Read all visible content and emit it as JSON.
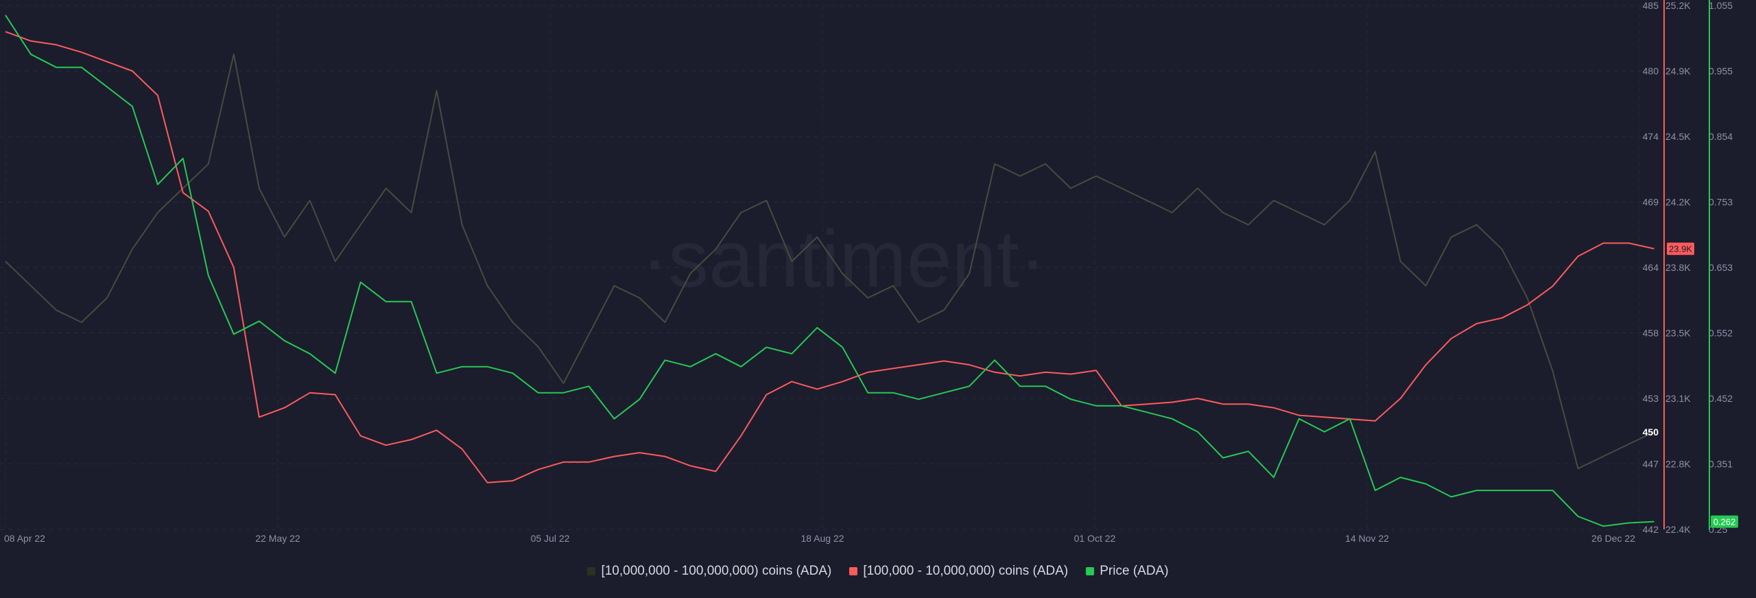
{
  "watermark": "·santiment·",
  "chart_data": {
    "type": "line",
    "x_ticks": [
      "08 Apr 22",
      "22 May 22",
      "05 Jul 22",
      "18 Aug 22",
      "01 Oct 22",
      "14 Nov 22",
      "26 Dec 22"
    ],
    "x_range": [
      "2022-04-08",
      "2022-12-26"
    ],
    "axes": [
      {
        "id": "holders_10m_100m",
        "ticks": [
          "485",
          "480",
          "474",
          "469",
          "464",
          "458",
          "453",
          "447",
          "442"
        ],
        "range": [
          442,
          485
        ],
        "current_label": "450",
        "color": "#4a4a3e"
      },
      {
        "id": "holders_100k_10m",
        "ticks": [
          "25.2K",
          "24.9K",
          "24.5K",
          "24.2K",
          "23.8K",
          "23.5K",
          "23.1K",
          "22.8K",
          "22.4K"
        ],
        "range": [
          22400,
          25200
        ],
        "current_label": "23.9K",
        "color": "#ff5b5b"
      },
      {
        "id": "price",
        "ticks": [
          "1.055",
          "0.955",
          "0.854",
          "0.753",
          "0.653",
          "0.552",
          "0.452",
          "0.351",
          "0.25"
        ],
        "range": [
          0.25,
          1.055
        ],
        "current_label": "0.262",
        "color": "#26c953"
      }
    ],
    "series": [
      {
        "name": "[10,000,000 - 100,000,000) coins (ADA)",
        "axis": "holders_10m_100m",
        "color": "#4a4a3e",
        "legend_swatch": "#2e3020",
        "points": [
          [
            "2022-04-08",
            464.0
          ],
          [
            "2022-04-12",
            462.0
          ],
          [
            "2022-04-16",
            460.0
          ],
          [
            "2022-04-20",
            459.0
          ],
          [
            "2022-04-24",
            461.0
          ],
          [
            "2022-04-28",
            465.0
          ],
          [
            "2022-05-02",
            468.0
          ],
          [
            "2022-05-06",
            470.0
          ],
          [
            "2022-05-10",
            472.0
          ],
          [
            "2022-05-14",
            481.0
          ],
          [
            "2022-05-18",
            470.0
          ],
          [
            "2022-05-22",
            466.0
          ],
          [
            "2022-05-26",
            469.0
          ],
          [
            "2022-05-30",
            464.0
          ],
          [
            "2022-06-03",
            467.0
          ],
          [
            "2022-06-07",
            470.0
          ],
          [
            "2022-06-11",
            468.0
          ],
          [
            "2022-06-15",
            478.0
          ],
          [
            "2022-06-19",
            467.0
          ],
          [
            "2022-06-23",
            462.0
          ],
          [
            "2022-06-27",
            459.0
          ],
          [
            "2022-07-01",
            457.0
          ],
          [
            "2022-07-05",
            454.0
          ],
          [
            "2022-07-09",
            458.0
          ],
          [
            "2022-07-13",
            462.0
          ],
          [
            "2022-07-17",
            461.0
          ],
          [
            "2022-07-21",
            459.0
          ],
          [
            "2022-07-25",
            463.0
          ],
          [
            "2022-07-29",
            465.0
          ],
          [
            "2022-08-02",
            468.0
          ],
          [
            "2022-08-06",
            469.0
          ],
          [
            "2022-08-10",
            464.0
          ],
          [
            "2022-08-14",
            466.0
          ],
          [
            "2022-08-18",
            463.0
          ],
          [
            "2022-08-22",
            461.0
          ],
          [
            "2022-08-26",
            462.0
          ],
          [
            "2022-08-30",
            459.0
          ],
          [
            "2022-09-03",
            460.0
          ],
          [
            "2022-09-07",
            463.0
          ],
          [
            "2022-09-11",
            472.0
          ],
          [
            "2022-09-15",
            471.0
          ],
          [
            "2022-09-19",
            472.0
          ],
          [
            "2022-09-23",
            470.0
          ],
          [
            "2022-09-27",
            471.0
          ],
          [
            "2022-10-01",
            470.0
          ],
          [
            "2022-10-05",
            469.0
          ],
          [
            "2022-10-09",
            468.0
          ],
          [
            "2022-10-13",
            470.0
          ],
          [
            "2022-10-17",
            468.0
          ],
          [
            "2022-10-21",
            467.0
          ],
          [
            "2022-10-25",
            469.0
          ],
          [
            "2022-10-29",
            468.0
          ],
          [
            "2022-11-02",
            467.0
          ],
          [
            "2022-11-06",
            469.0
          ],
          [
            "2022-11-10",
            473.0
          ],
          [
            "2022-11-14",
            464.0
          ],
          [
            "2022-11-18",
            462.0
          ],
          [
            "2022-11-22",
            466.0
          ],
          [
            "2022-11-26",
            467.0
          ],
          [
            "2022-11-30",
            465.0
          ],
          [
            "2022-12-04",
            461.0
          ],
          [
            "2022-12-08",
            455.0
          ],
          [
            "2022-12-12",
            447.0
          ],
          [
            "2022-12-16",
            448.0
          ],
          [
            "2022-12-20",
            449.0
          ],
          [
            "2022-12-24",
            450.0
          ]
        ]
      },
      {
        "name": "[100,000  - 10,000,000) coins (ADA)",
        "axis": "holders_100k_10m",
        "color": "#ff5b5b",
        "legend_swatch": "#ff5b5b",
        "points": [
          [
            "2022-04-08",
            25060
          ],
          [
            "2022-04-12",
            25010
          ],
          [
            "2022-04-16",
            24990
          ],
          [
            "2022-04-20",
            24950
          ],
          [
            "2022-04-24",
            24900
          ],
          [
            "2022-04-28",
            24850
          ],
          [
            "2022-05-02",
            24720
          ],
          [
            "2022-05-06",
            24200
          ],
          [
            "2022-05-10",
            24100
          ],
          [
            "2022-05-14",
            23800
          ],
          [
            "2022-05-18",
            23000
          ],
          [
            "2022-05-22",
            23050
          ],
          [
            "2022-05-26",
            23130
          ],
          [
            "2022-05-30",
            23120
          ],
          [
            "2022-06-03",
            22900
          ],
          [
            "2022-06-07",
            22850
          ],
          [
            "2022-06-11",
            22880
          ],
          [
            "2022-06-15",
            22930
          ],
          [
            "2022-06-19",
            22830
          ],
          [
            "2022-06-23",
            22650
          ],
          [
            "2022-06-27",
            22660
          ],
          [
            "2022-07-01",
            22720
          ],
          [
            "2022-07-05",
            22760
          ],
          [
            "2022-07-09",
            22760
          ],
          [
            "2022-07-13",
            22790
          ],
          [
            "2022-07-17",
            22810
          ],
          [
            "2022-07-21",
            22790
          ],
          [
            "2022-07-25",
            22740
          ],
          [
            "2022-07-29",
            22710
          ],
          [
            "2022-08-02",
            22900
          ],
          [
            "2022-08-06",
            23120
          ],
          [
            "2022-08-10",
            23190
          ],
          [
            "2022-08-14",
            23150
          ],
          [
            "2022-08-18",
            23190
          ],
          [
            "2022-08-22",
            23240
          ],
          [
            "2022-08-26",
            23260
          ],
          [
            "2022-08-30",
            23280
          ],
          [
            "2022-09-03",
            23300
          ],
          [
            "2022-09-07",
            23280
          ],
          [
            "2022-09-11",
            23240
          ],
          [
            "2022-09-15",
            23220
          ],
          [
            "2022-09-19",
            23240
          ],
          [
            "2022-09-23",
            23230
          ],
          [
            "2022-09-27",
            23250
          ],
          [
            "2022-10-01",
            23060
          ],
          [
            "2022-10-05",
            23070
          ],
          [
            "2022-10-09",
            23080
          ],
          [
            "2022-10-13",
            23100
          ],
          [
            "2022-10-17",
            23070
          ],
          [
            "2022-10-21",
            23070
          ],
          [
            "2022-10-25",
            23050
          ],
          [
            "2022-10-29",
            23010
          ],
          [
            "2022-11-02",
            23000
          ],
          [
            "2022-11-06",
            22990
          ],
          [
            "2022-11-10",
            22980
          ],
          [
            "2022-11-14",
            23100
          ],
          [
            "2022-11-18",
            23280
          ],
          [
            "2022-11-22",
            23420
          ],
          [
            "2022-11-26",
            23500
          ],
          [
            "2022-11-30",
            23530
          ],
          [
            "2022-12-04",
            23600
          ],
          [
            "2022-12-08",
            23700
          ],
          [
            "2022-12-12",
            23860
          ],
          [
            "2022-12-16",
            23930
          ],
          [
            "2022-12-20",
            23930
          ],
          [
            "2022-12-24",
            23900
          ]
        ]
      },
      {
        "name": "Price (ADA)",
        "axis": "price",
        "color": "#26c953",
        "legend_swatch": "#26c953",
        "points": [
          [
            "2022-04-08",
            1.04
          ],
          [
            "2022-04-12",
            0.98
          ],
          [
            "2022-04-16",
            0.96
          ],
          [
            "2022-04-20",
            0.96
          ],
          [
            "2022-04-24",
            0.93
          ],
          [
            "2022-04-28",
            0.9
          ],
          [
            "2022-05-02",
            0.78
          ],
          [
            "2022-05-06",
            0.82
          ],
          [
            "2022-05-10",
            0.64
          ],
          [
            "2022-05-14",
            0.55
          ],
          [
            "2022-05-18",
            0.57
          ],
          [
            "2022-05-22",
            0.54
          ],
          [
            "2022-05-26",
            0.52
          ],
          [
            "2022-05-30",
            0.49
          ],
          [
            "2022-06-03",
            0.63
          ],
          [
            "2022-06-07",
            0.6
          ],
          [
            "2022-06-11",
            0.6
          ],
          [
            "2022-06-15",
            0.49
          ],
          [
            "2022-06-19",
            0.5
          ],
          [
            "2022-06-23",
            0.5
          ],
          [
            "2022-06-27",
            0.49
          ],
          [
            "2022-07-01",
            0.46
          ],
          [
            "2022-07-05",
            0.46
          ],
          [
            "2022-07-09",
            0.47
          ],
          [
            "2022-07-13",
            0.42
          ],
          [
            "2022-07-17",
            0.45
          ],
          [
            "2022-07-21",
            0.51
          ],
          [
            "2022-07-25",
            0.5
          ],
          [
            "2022-07-29",
            0.52
          ],
          [
            "2022-08-02",
            0.5
          ],
          [
            "2022-08-06",
            0.53
          ],
          [
            "2022-08-10",
            0.52
          ],
          [
            "2022-08-14",
            0.56
          ],
          [
            "2022-08-18",
            0.53
          ],
          [
            "2022-08-22",
            0.46
          ],
          [
            "2022-08-26",
            0.46
          ],
          [
            "2022-08-30",
            0.45
          ],
          [
            "2022-09-03",
            0.46
          ],
          [
            "2022-09-07",
            0.47
          ],
          [
            "2022-09-11",
            0.51
          ],
          [
            "2022-09-15",
            0.47
          ],
          [
            "2022-09-19",
            0.47
          ],
          [
            "2022-09-23",
            0.45
          ],
          [
            "2022-09-27",
            0.44
          ],
          [
            "2022-10-01",
            0.44
          ],
          [
            "2022-10-05",
            0.43
          ],
          [
            "2022-10-09",
            0.42
          ],
          [
            "2022-10-13",
            0.4
          ],
          [
            "2022-10-17",
            0.36
          ],
          [
            "2022-10-21",
            0.37
          ],
          [
            "2022-10-25",
            0.33
          ],
          [
            "2022-10-29",
            0.42
          ],
          [
            "2022-11-02",
            0.4
          ],
          [
            "2022-11-06",
            0.42
          ],
          [
            "2022-11-10",
            0.31
          ],
          [
            "2022-11-14",
            0.33
          ],
          [
            "2022-11-18",
            0.32
          ],
          [
            "2022-11-22",
            0.3
          ],
          [
            "2022-11-26",
            0.31
          ],
          [
            "2022-11-30",
            0.31
          ],
          [
            "2022-12-04",
            0.31
          ],
          [
            "2022-12-08",
            0.31
          ],
          [
            "2022-12-12",
            0.27
          ],
          [
            "2022-12-16",
            0.255
          ],
          [
            "2022-12-20",
            0.26
          ],
          [
            "2022-12-24",
            0.262
          ]
        ]
      }
    ]
  }
}
